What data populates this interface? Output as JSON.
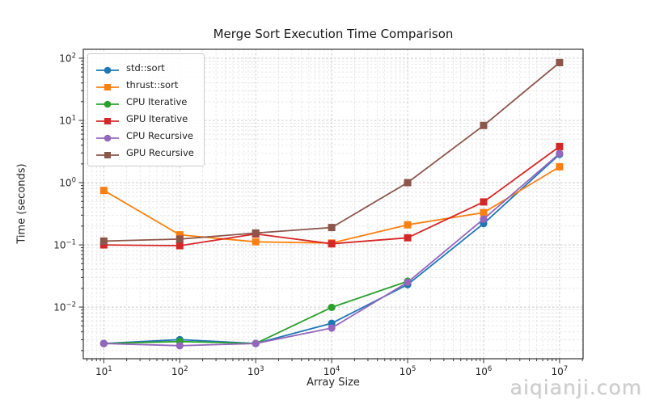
{
  "watermark": "aiqianji.com",
  "chart_data": {
    "type": "line",
    "title": "Merge Sort Execution Time Comparison",
    "xlabel": "Array Size",
    "ylabel": "Time (seconds)",
    "x_scale": "log",
    "y_scale": "log",
    "grid": "both major and minor, dashed",
    "legend_position": "upper-left",
    "x": [
      10,
      100,
      1000,
      10000,
      100000,
      1000000,
      10000000
    ],
    "x_tick_exponents": [
      1,
      2,
      3,
      4,
      5,
      6,
      7
    ],
    "y_tick_exponents": [
      2,
      1,
      0,
      -1,
      -2
    ],
    "x_log_range": [
      0.73,
      7.31
    ],
    "y_log_range": [
      -2.83,
      2.143
    ],
    "series": [
      {
        "name": "std::sort",
        "color": "#1f77b4",
        "marker": "circle",
        "values": [
          0.0026,
          0.003,
          0.0026,
          0.0055,
          0.023,
          0.22,
          2.85
        ]
      },
      {
        "name": "thrust::sort",
        "color": "#ff7f0e",
        "marker": "square",
        "values": [
          0.75,
          0.145,
          0.112,
          0.107,
          0.21,
          0.33,
          1.8
        ]
      },
      {
        "name": "CPU Iterative",
        "color": "#2ca02c",
        "marker": "circle",
        "values": [
          0.0026,
          0.0028,
          0.0026,
          0.0099,
          0.026,
          null,
          null
        ]
      },
      {
        "name": "GPU Iterative",
        "color": "#d62728",
        "marker": "square",
        "values": [
          0.1,
          0.097,
          0.15,
          0.104,
          0.13,
          0.49,
          3.8
        ]
      },
      {
        "name": "CPU Recursive",
        "color": "#9467bd",
        "marker": "circle",
        "values": [
          0.0026,
          0.0024,
          0.0026,
          0.0046,
          0.025,
          0.26,
          2.95
        ]
      },
      {
        "name": "GPU Recursive",
        "color": "#8c564b",
        "marker": "square",
        "values": [
          0.115,
          0.124,
          0.155,
          0.19,
          1.0,
          8.3,
          85
        ]
      }
    ]
  }
}
